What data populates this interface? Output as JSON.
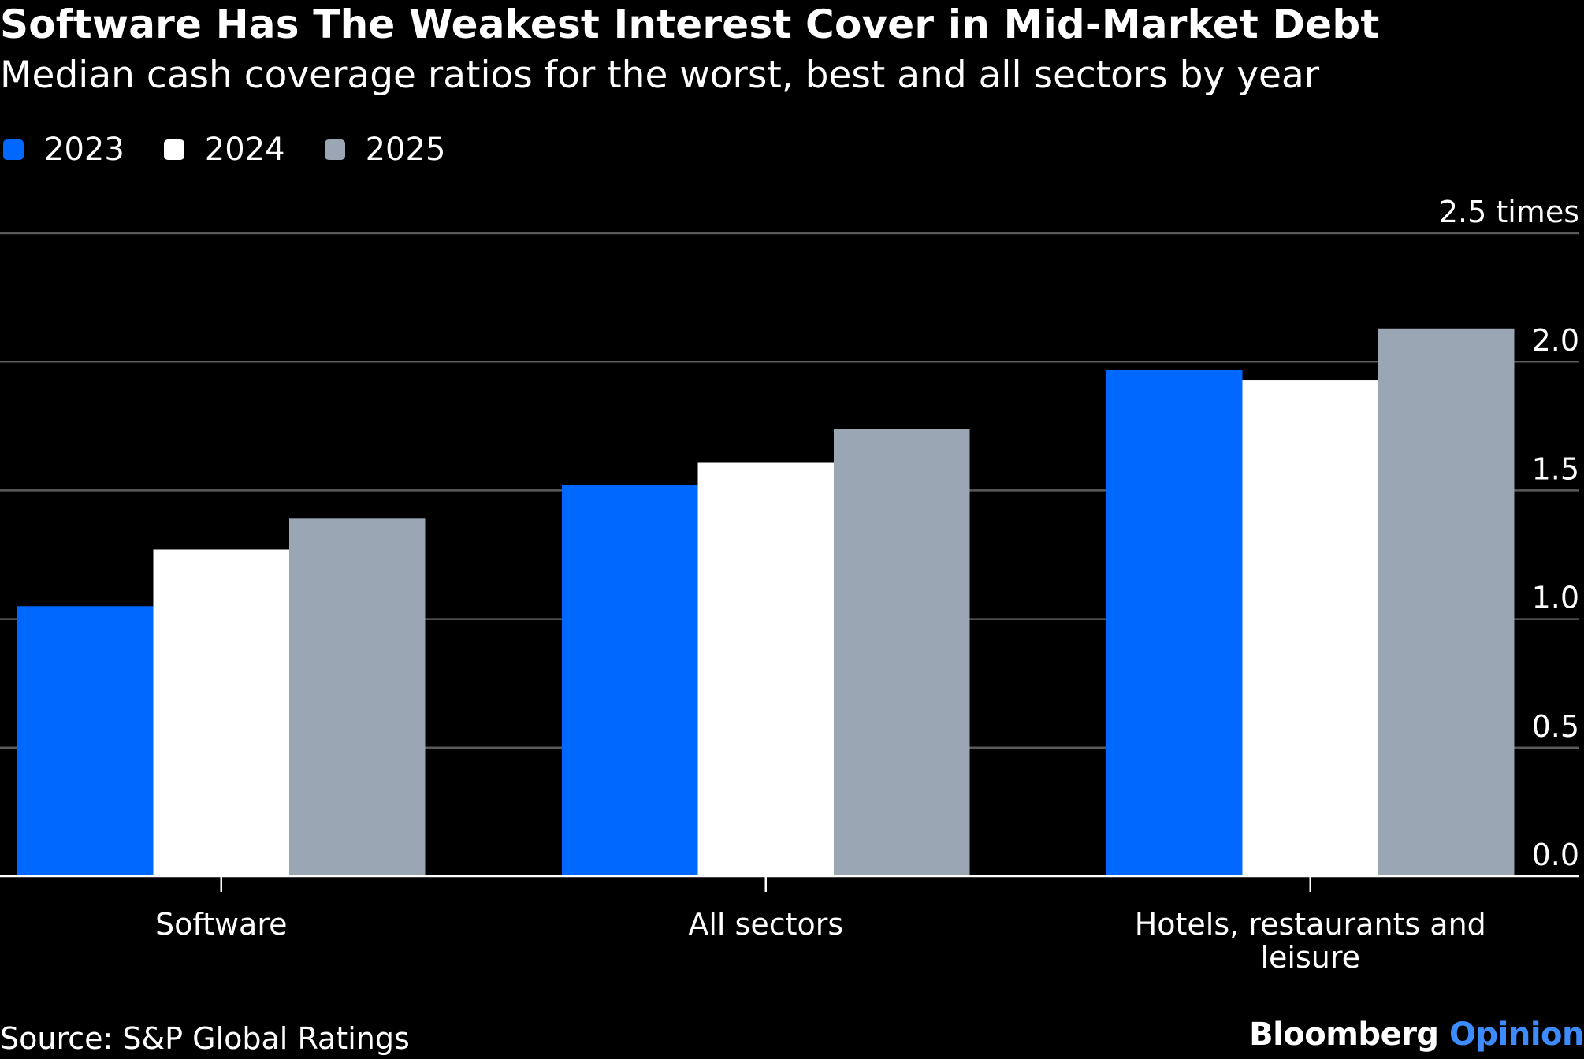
{
  "chart_data": {
    "type": "bar",
    "title": "Software Has The Weakest Interest Cover in Mid-Market Debt",
    "subtitle": "Median cash coverage ratios for the worst, best and all sectors by year",
    "categories": [
      "Software",
      "All sectors",
      "Hotels, restaurants and leisure"
    ],
    "category_lines": [
      [
        "Software"
      ],
      [
        "All sectors"
      ],
      [
        "Hotels, restaurants and",
        "leisure"
      ]
    ],
    "series": [
      {
        "name": "2023",
        "color": "#0068ff",
        "values": [
          1.05,
          1.52,
          1.97
        ]
      },
      {
        "name": "2024",
        "color": "#ffffff",
        "values": [
          1.27,
          1.61,
          1.93
        ]
      },
      {
        "name": "2025",
        "color": "#9aa6b3",
        "values": [
          1.39,
          1.74,
          2.13
        ]
      }
    ],
    "ylim": [
      0,
      2.5
    ],
    "yticks": [
      0,
      0.5,
      1,
      1.5,
      2,
      2.5
    ],
    "ytick_labels": [
      "0.0",
      "0.5",
      "1.0",
      "1.5",
      "2.0",
      "2.5 times"
    ],
    "y_axis_side": "right",
    "grid": true,
    "legend_position": "top-left",
    "source": "Source: S&P Global Ratings"
  },
  "brand": {
    "name": "Bloomberg",
    "suffix": "Opinion"
  },
  "colors": {
    "background": "#000000",
    "gridline": "#5a5a5a",
    "axis": "#ffffff",
    "text": "#ffffff"
  }
}
